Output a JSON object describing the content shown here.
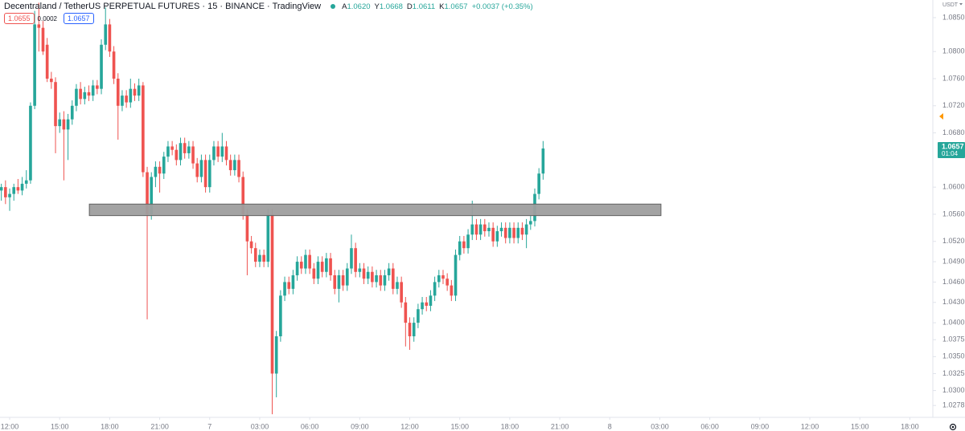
{
  "chart_data": {
    "type": "candlestick",
    "title": "Decentraland / TetherUS PERPETUAL FUTURES · 15 · BINANCE · TradingView",
    "ohlc_legend": [
      {
        "label": "A",
        "value": "1.0620"
      },
      {
        "label": "Y",
        "value": "1.0668"
      },
      {
        "label": "D",
        "value": "1.0611"
      },
      {
        "label": "K",
        "value": "1.0657"
      }
    ],
    "change": "+0.0037 (+0.35%)",
    "sell_price": "1.0655",
    "spread": "0.0002",
    "buy_price": "1.0657",
    "last_price_label": "1.0657",
    "countdown": "01:04",
    "currency": "USDT",
    "up_color": "#26a69a",
    "down_color": "#ef5350",
    "grid": false,
    "xlim": [
      -0.58,
      55.38
    ],
    "ylim": [
      1.0264,
      1.0876
    ],
    "xticks": [
      {
        "value": 0,
        "label": "12:00"
      },
      {
        "value": 3,
        "label": "15:00"
      },
      {
        "value": 6,
        "label": "18:00"
      },
      {
        "value": 9,
        "label": "21:00"
      },
      {
        "value": 12,
        "label": "7"
      },
      {
        "value": 15,
        "label": "03:00"
      },
      {
        "value": 18,
        "label": "06:00"
      },
      {
        "value": 21,
        "label": "09:00"
      },
      {
        "value": 24,
        "label": "12:00"
      },
      {
        "value": 27,
        "label": "15:00"
      },
      {
        "value": 30,
        "label": "18:00"
      },
      {
        "value": 33,
        "label": "21:00"
      },
      {
        "value": 36,
        "label": "8"
      },
      {
        "value": 39,
        "label": "03:00"
      },
      {
        "value": 42,
        "label": "06:00"
      },
      {
        "value": 45,
        "label": "09:00"
      },
      {
        "value": 48,
        "label": "12:00"
      },
      {
        "value": 51,
        "label": "15:00"
      },
      {
        "value": 54,
        "label": "18:00"
      }
    ],
    "yticks": [
      {
        "value": 1.085,
        "label": "1.0850"
      },
      {
        "value": 1.08,
        "label": "1.0800"
      },
      {
        "value": 1.076,
        "label": "1.0760"
      },
      {
        "value": 1.072,
        "label": "1.0720"
      },
      {
        "value": 1.068,
        "label": "1.0680"
      },
      {
        "value": 1.06,
        "label": "1.0600"
      },
      {
        "value": 1.056,
        "label": "1.0560"
      },
      {
        "value": 1.052,
        "label": "1.0520"
      },
      {
        "value": 1.049,
        "label": "1.0490"
      },
      {
        "value": 1.046,
        "label": "1.0460"
      },
      {
        "value": 1.043,
        "label": "1.0430"
      },
      {
        "value": 1.04,
        "label": "1.0400"
      },
      {
        "value": 1.0375,
        "label": "1.0375"
      },
      {
        "value": 1.035,
        "label": "1.0350"
      },
      {
        "value": 1.0325,
        "label": "1.0325"
      },
      {
        "value": 1.03,
        "label": "1.0300"
      },
      {
        "value": 1.0278,
        "label": "1.0278"
      }
    ],
    "zone": {
      "x0": 4.78,
      "x1": 39.07,
      "top": 1.0575,
      "bottom": 1.0558,
      "color": "#9e9e9e"
    },
    "x": [
      -0.5,
      -0.25,
      0,
      0.25,
      0.5,
      0.75,
      1,
      1.25,
      1.5,
      1.75,
      2,
      2.25,
      2.5,
      2.75,
      3,
      3.25,
      3.5,
      3.75,
      4,
      4.25,
      4.5,
      4.75,
      5,
      5.25,
      5.5,
      5.75,
      6,
      6.25,
      6.5,
      6.75,
      7,
      7.25,
      7.5,
      7.75,
      8,
      8.25,
      8.5,
      8.75,
      9,
      9.25,
      9.5,
      9.75,
      10,
      10.25,
      10.5,
      10.75,
      11,
      11.25,
      11.5,
      11.75,
      12,
      12.25,
      12.5,
      12.75,
      13,
      13.25,
      13.5,
      13.75,
      14,
      14.25,
      14.5,
      14.75,
      15,
      15.25,
      15.5,
      15.75,
      16,
      16.25,
      16.5,
      16.75,
      17,
      17.25,
      17.5,
      17.75,
      18,
      18.25,
      18.5,
      18.75,
      19,
      19.25,
      19.5,
      19.75,
      20,
      20.25,
      20.5,
      20.75,
      21,
      21.25,
      21.5,
      21.75,
      22,
      22.25,
      22.5,
      22.75,
      23,
      23.25,
      23.5,
      23.75,
      24,
      24.25,
      24.5,
      24.75,
      25,
      25.25,
      25.5,
      25.75,
      26,
      26.25,
      26.5,
      26.75,
      27,
      27.25,
      27.5,
      27.75,
      28,
      28.25,
      28.5,
      28.75,
      29,
      29.25,
      29.5,
      29.75,
      30,
      30.25,
      30.5,
      30.75,
      31,
      31.25,
      31.5,
      31.75,
      32
    ],
    "candles": [
      [
        1.0595,
        1.0605,
        1.058,
        1.06
      ],
      [
        1.06,
        1.061,
        1.0575,
        1.0585
      ],
      [
        1.0585,
        1.0598,
        1.0565,
        1.059
      ],
      [
        1.059,
        1.0605,
        1.058,
        1.06
      ],
      [
        1.06,
        1.0612,
        1.059,
        1.0595
      ],
      [
        1.0595,
        1.0615,
        1.0588,
        1.0605
      ],
      [
        1.0605,
        1.0625,
        1.0598,
        1.061
      ],
      [
        1.061,
        1.0725,
        1.0605,
        1.072
      ],
      [
        1.072,
        1.086,
        1.0715,
        1.084
      ],
      [
        1.084,
        1.0872,
        1.08,
        1.0835
      ],
      [
        1.0835,
        1.0845,
        1.0795,
        1.08
      ],
      [
        1.081,
        1.082,
        1.0755,
        1.076
      ],
      [
        1.076,
        1.077,
        1.0745,
        1.0755
      ],
      [
        1.0755,
        1.0762,
        1.065,
        1.069
      ],
      [
        1.069,
        1.071,
        1.068,
        1.07
      ],
      [
        1.07,
        1.0712,
        1.061,
        1.0685
      ],
      [
        1.0685,
        1.0708,
        1.064,
        1.07
      ],
      [
        1.07,
        1.0728,
        1.0692,
        1.072
      ],
      [
        1.072,
        1.0752,
        1.0712,
        1.0745
      ],
      [
        1.0745,
        1.0755,
        1.0722,
        1.073
      ],
      [
        1.073,
        1.0748,
        1.0722,
        1.074
      ],
      [
        1.074,
        1.075,
        1.0727,
        1.0735
      ],
      [
        1.0735,
        1.0758,
        1.0727,
        1.075
      ],
      [
        1.075,
        1.0758,
        1.0737,
        1.0745
      ],
      [
        1.0745,
        1.0818,
        1.0737,
        1.081
      ],
      [
        1.081,
        1.0865,
        1.0802,
        1.084
      ],
      [
        1.084,
        1.0848,
        1.0792,
        1.08
      ],
      [
        1.08,
        1.0808,
        1.0752,
        1.076
      ],
      [
        1.076,
        1.0768,
        1.067,
        1.072
      ],
      [
        1.072,
        1.0743,
        1.0712,
        1.0735
      ],
      [
        1.0735,
        1.0743,
        1.0717,
        1.0725
      ],
      [
        1.0725,
        1.076,
        1.0717,
        1.0745
      ],
      [
        1.0745,
        1.0753,
        1.0727,
        1.0735
      ],
      [
        1.0735,
        1.076,
        1.0727,
        1.075
      ],
      [
        1.075,
        1.0755,
        1.0615,
        1.0622
      ],
      [
        1.0622,
        1.063,
        1.0405,
        1.056
      ],
      [
        1.056,
        1.0622,
        1.0552,
        1.0615
      ],
      [
        1.0615,
        1.0638,
        1.06,
        1.063
      ],
      [
        1.063,
        1.0638,
        1.0592,
        1.062
      ],
      [
        1.062,
        1.0652,
        1.0612,
        1.0645
      ],
      [
        1.0645,
        1.0668,
        1.0637,
        1.066
      ],
      [
        1.066,
        1.0668,
        1.0647,
        1.0655
      ],
      [
        1.0655,
        1.0663,
        1.0632,
        1.064
      ],
      [
        1.064,
        1.0673,
        1.0632,
        1.0665
      ],
      [
        1.0665,
        1.0673,
        1.0642,
        1.065
      ],
      [
        1.065,
        1.0668,
        1.0642,
        1.066
      ],
      [
        1.066,
        1.0668,
        1.0627,
        1.0635
      ],
      [
        1.0635,
        1.0643,
        1.0607,
        1.0615
      ],
      [
        1.0615,
        1.0648,
        1.0607,
        1.064
      ],
      [
        1.064,
        1.0648,
        1.0592,
        1.06
      ],
      [
        1.06,
        1.0648,
        1.0592,
        1.064
      ],
      [
        1.064,
        1.0668,
        1.0632,
        1.066
      ],
      [
        1.066,
        1.0668,
        1.0637,
        1.0645
      ],
      [
        1.0645,
        1.068,
        1.0637,
        1.066
      ],
      [
        1.066,
        1.0668,
        1.0632,
        1.064
      ],
      [
        1.064,
        1.0648,
        1.0617,
        1.0625
      ],
      [
        1.0625,
        1.0648,
        1.0617,
        1.064
      ],
      [
        1.064,
        1.0648,
        1.0607,
        1.0615
      ],
      [
        1.0615,
        1.0623,
        1.0552,
        1.056
      ],
      [
        1.056,
        1.0568,
        1.047,
        1.052
      ],
      [
        1.052,
        1.0528,
        1.0502,
        1.051
      ],
      [
        1.051,
        1.0518,
        1.0482,
        1.049
      ],
      [
        1.049,
        1.0508,
        1.0482,
        1.05
      ],
      [
        1.05,
        1.0508,
        1.0482,
        1.049
      ],
      [
        1.049,
        1.0568,
        1.0482,
        1.056
      ],
      [
        1.056,
        1.0568,
        1.0265,
        1.0325
      ],
      [
        1.0325,
        1.0388,
        1.029,
        1.038
      ],
      [
        1.038,
        1.0448,
        1.0372,
        1.044
      ],
      [
        1.044,
        1.0468,
        1.0432,
        1.046
      ],
      [
        1.046,
        1.0468,
        1.0442,
        1.045
      ],
      [
        1.045,
        1.0478,
        1.0442,
        1.047
      ],
      [
        1.047,
        1.0498,
        1.0462,
        1.049
      ],
      [
        1.049,
        1.0498,
        1.0472,
        1.048
      ],
      [
        1.048,
        1.0508,
        1.0472,
        1.05
      ],
      [
        1.05,
        1.0508,
        1.0472,
        1.048
      ],
      [
        1.048,
        1.0488,
        1.0457,
        1.0465
      ],
      [
        1.0465,
        1.0498,
        1.0457,
        1.049
      ],
      [
        1.049,
        1.0498,
        1.0467,
        1.0475
      ],
      [
        1.0475,
        1.0503,
        1.0467,
        1.0495
      ],
      [
        1.0495,
        1.0503,
        1.0462,
        1.047
      ],
      [
        1.047,
        1.0478,
        1.0442,
        1.045
      ],
      [
        1.045,
        1.0478,
        1.043,
        1.047
      ],
      [
        1.047,
        1.0478,
        1.0447,
        1.0455
      ],
      [
        1.0455,
        1.0488,
        1.0447,
        1.048
      ],
      [
        1.048,
        1.053,
        1.0472,
        1.051
      ],
      [
        1.051,
        1.0518,
        1.0467,
        1.0475
      ],
      [
        1.0475,
        1.0488,
        1.0467,
        1.048
      ],
      [
        1.048,
        1.0488,
        1.0457,
        1.0465
      ],
      [
        1.0465,
        1.0483,
        1.0457,
        1.0475
      ],
      [
        1.0475,
        1.0483,
        1.0452,
        1.046
      ],
      [
        1.046,
        1.0478,
        1.0452,
        1.047
      ],
      [
        1.047,
        1.0478,
        1.0447,
        1.0455
      ],
      [
        1.0455,
        1.0478,
        1.0447,
        1.047
      ],
      [
        1.047,
        1.0488,
        1.0462,
        1.048
      ],
      [
        1.048,
        1.0488,
        1.0442,
        1.045
      ],
      [
        1.045,
        1.0468,
        1.0442,
        1.046
      ],
      [
        1.046,
        1.0468,
        1.0422,
        1.043
      ],
      [
        1.043,
        1.0438,
        1.0365,
        1.04
      ],
      [
        1.04,
        1.0408,
        1.036,
        1.038
      ],
      [
        1.038,
        1.0408,
        1.0372,
        1.04
      ],
      [
        1.04,
        1.0428,
        1.0392,
        1.042
      ],
      [
        1.042,
        1.0438,
        1.0412,
        1.043
      ],
      [
        1.043,
        1.0438,
        1.0417,
        1.0425
      ],
      [
        1.0425,
        1.0448,
        1.0417,
        1.044
      ],
      [
        1.044,
        1.0468,
        1.0432,
        1.046
      ],
      [
        1.046,
        1.0478,
        1.0452,
        1.047
      ],
      [
        1.047,
        1.0478,
        1.0457,
        1.0465
      ],
      [
        1.0465,
        1.0473,
        1.0447,
        1.0455
      ],
      [
        1.0455,
        1.0463,
        1.0432,
        1.044
      ],
      [
        1.044,
        1.0508,
        1.0432,
        1.05
      ],
      [
        1.05,
        1.0528,
        1.0492,
        1.052
      ],
      [
        1.052,
        1.0528,
        1.0502,
        1.051
      ],
      [
        1.051,
        1.0538,
        1.0502,
        1.053
      ],
      [
        1.053,
        1.058,
        1.0522,
        1.0545
      ],
      [
        1.0545,
        1.0553,
        1.0522,
        1.053
      ],
      [
        1.053,
        1.0553,
        1.0522,
        1.0545
      ],
      [
        1.0545,
        1.0553,
        1.0527,
        1.0535
      ],
      [
        1.0535,
        1.0548,
        1.0527,
        1.054
      ],
      [
        1.054,
        1.0548,
        1.0512,
        1.052
      ],
      [
        1.052,
        1.0543,
        1.0512,
        1.0535
      ],
      [
        1.0535,
        1.0548,
        1.0527,
        1.054
      ],
      [
        1.054,
        1.0548,
        1.0517,
        1.0525
      ],
      [
        1.0525,
        1.0548,
        1.0517,
        1.054
      ],
      [
        1.054,
        1.0548,
        1.0517,
        1.0525
      ],
      [
        1.0525,
        1.0548,
        1.0517,
        1.054
      ],
      [
        1.054,
        1.0548,
        1.0522,
        1.053
      ],
      [
        1.053,
        1.0553,
        1.051,
        1.0545
      ],
      [
        1.0545,
        1.0558,
        1.0537,
        1.055
      ],
      [
        1.055,
        1.0598,
        1.0542,
        1.059
      ],
      [
        1.059,
        1.0628,
        1.0582,
        1.062
      ],
      [
        1.062,
        1.0668,
        1.0611,
        1.0657
      ]
    ]
  }
}
